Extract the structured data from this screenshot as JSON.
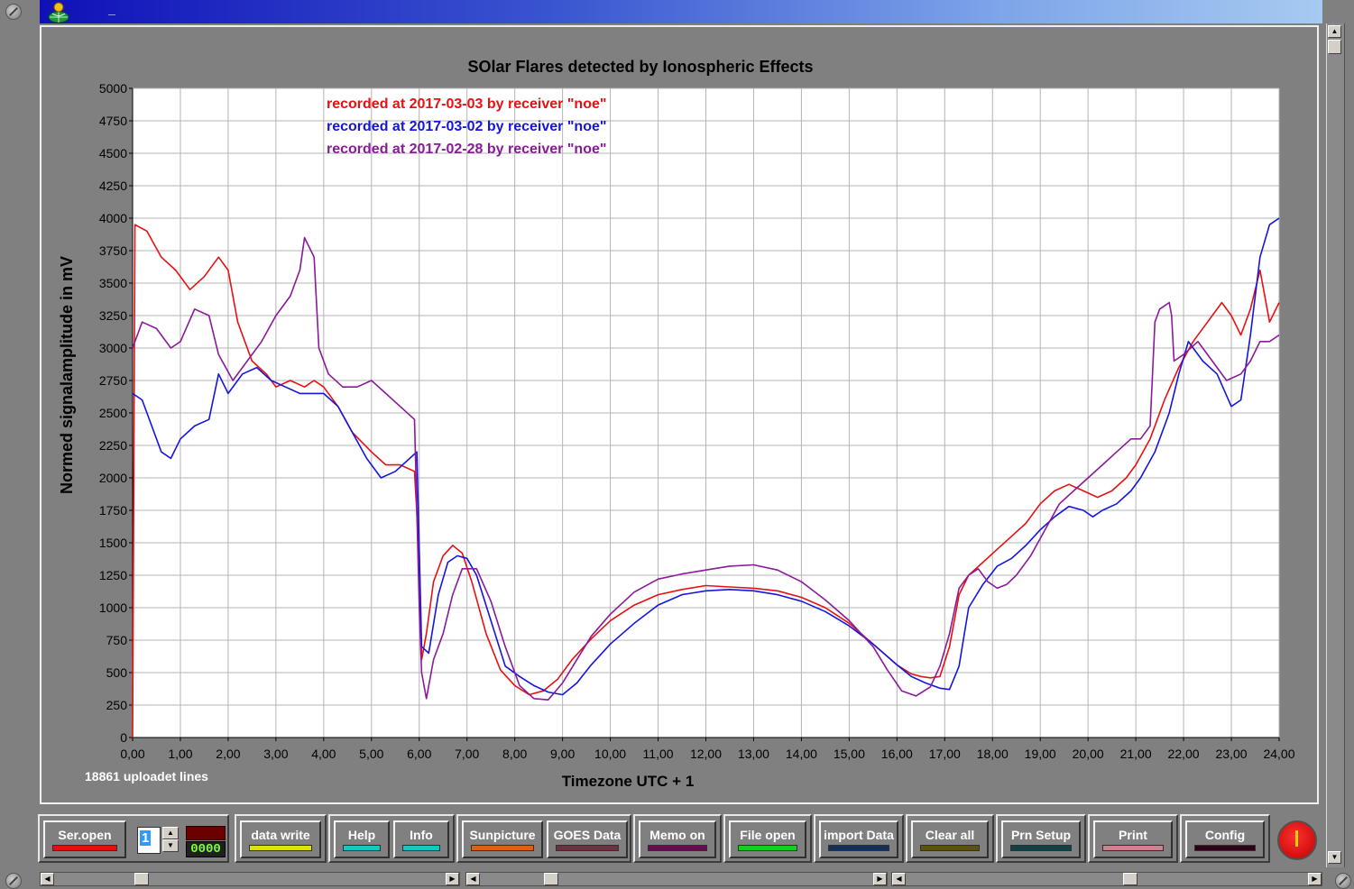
{
  "window": {
    "min_symbol": "_"
  },
  "chart_data": {
    "type": "line",
    "title": "SOlar Flares detected by Ionospheric Effects",
    "xlabel": "Timezone UTC + 1",
    "ylabel": "Normed signalamplitude in mV",
    "xlim": [
      0,
      24
    ],
    "ylim": [
      0,
      5000
    ],
    "grid": true,
    "legend_position": "top-left",
    "x_ticks": [
      "0,00",
      "1,00",
      "2,00",
      "3,00",
      "4,00",
      "5,00",
      "6,00",
      "7,00",
      "8,00",
      "9,00",
      "10,00",
      "11,00",
      "12,00",
      "13,00",
      "14,00",
      "15,00",
      "16,00",
      "17,00",
      "18,00",
      "19,00",
      "20,00",
      "21,00",
      "22,00",
      "23,00",
      "24,00"
    ],
    "y_ticks": [
      "0",
      "250",
      "500",
      "750",
      "1000",
      "1250",
      "1500",
      "1750",
      "2000",
      "2250",
      "2500",
      "2750",
      "3000",
      "3250",
      "3500",
      "3750",
      "4000",
      "4250",
      "4500",
      "4750",
      "5000"
    ],
    "series": [
      {
        "name": "recorded at 2017-03-03 by receiver \"noe\"",
        "color": "#e81010",
        "x": [
          0,
          0.05,
          0.3,
          0.6,
          0.9,
          1.2,
          1.5,
          1.8,
          2.0,
          2.2,
          2.5,
          2.8,
          3.0,
          3.3,
          3.6,
          3.8,
          4.0,
          4.3,
          4.6,
          5.0,
          5.3,
          5.6,
          5.9,
          6.0,
          6.05,
          6.15,
          6.3,
          6.5,
          6.7,
          6.9,
          7.1,
          7.4,
          7.7,
          8.0,
          8.3,
          8.6,
          8.9,
          9.2,
          9.6,
          10.0,
          10.5,
          11.0,
          11.5,
          12.0,
          12.5,
          13.0,
          13.5,
          14.0,
          14.5,
          15.0,
          15.5,
          16.0,
          16.3,
          16.5,
          16.7,
          16.9,
          17.1,
          17.3,
          17.5,
          17.8,
          18.1,
          18.4,
          18.7,
          19.0,
          19.3,
          19.6,
          19.9,
          20.2,
          20.5,
          20.8,
          21.0,
          21.3,
          21.6,
          21.9,
          22.2,
          22.5,
          22.8,
          23.0,
          23.2,
          23.4,
          23.6,
          23.8,
          24.0
        ],
        "values": [
          0,
          3950,
          3900,
          3700,
          3600,
          3450,
          3550,
          3700,
          3600,
          3200,
          2900,
          2800,
          2700,
          2750,
          2700,
          2750,
          2700,
          2550,
          2350,
          2200,
          2100,
          2100,
          2050,
          1400,
          600,
          800,
          1200,
          1400,
          1480,
          1420,
          1200,
          800,
          520,
          400,
          330,
          360,
          450,
          600,
          760,
          900,
          1020,
          1100,
          1140,
          1170,
          1160,
          1150,
          1130,
          1080,
          1000,
          880,
          720,
          560,
          490,
          470,
          460,
          470,
          700,
          1100,
          1250,
          1350,
          1450,
          1550,
          1650,
          1800,
          1900,
          1950,
          1900,
          1850,
          1900,
          2000,
          2100,
          2300,
          2600,
          2850,
          3050,
          3200,
          3350,
          3250,
          3100,
          3300,
          3600,
          3200,
          3350
        ]
      },
      {
        "name": "recorded at 2017-03-02 by receiver \"noe\"",
        "color": "#1515e0",
        "x": [
          0,
          0.2,
          0.4,
          0.6,
          0.8,
          1.0,
          1.3,
          1.6,
          1.8,
          2.0,
          2.3,
          2.6,
          2.9,
          3.2,
          3.5,
          3.8,
          4.0,
          4.3,
          4.6,
          4.9,
          5.2,
          5.5,
          5.8,
          5.95,
          6.05,
          6.2,
          6.4,
          6.6,
          6.8,
          7.0,
          7.2,
          7.5,
          7.8,
          8.1,
          8.4,
          8.7,
          9.0,
          9.3,
          9.6,
          10.0,
          10.5,
          11.0,
          11.5,
          12.0,
          12.5,
          13.0,
          13.5,
          14.0,
          14.5,
          15.0,
          15.5,
          16.0,
          16.3,
          16.6,
          16.9,
          17.1,
          17.3,
          17.5,
          17.8,
          18.1,
          18.4,
          18.7,
          19.0,
          19.3,
          19.6,
          19.9,
          20.1,
          20.3,
          20.6,
          20.9,
          21.1,
          21.4,
          21.7,
          21.9,
          22.1,
          22.4,
          22.7,
          23.0,
          23.2,
          23.4,
          23.6,
          23.8,
          24.0
        ],
        "values": [
          2650,
          2600,
          2400,
          2200,
          2150,
          2300,
          2400,
          2450,
          2800,
          2650,
          2800,
          2850,
          2750,
          2700,
          2650,
          2650,
          2650,
          2550,
          2350,
          2150,
          2000,
          2050,
          2150,
          2200,
          700,
          650,
          1100,
          1350,
          1400,
          1380,
          1250,
          900,
          550,
          470,
          400,
          350,
          330,
          420,
          560,
          720,
          880,
          1020,
          1100,
          1130,
          1140,
          1130,
          1100,
          1050,
          970,
          860,
          720,
          560,
          470,
          420,
          380,
          370,
          550,
          1000,
          1180,
          1320,
          1380,
          1480,
          1600,
          1700,
          1780,
          1750,
          1700,
          1750,
          1800,
          1900,
          2000,
          2200,
          2500,
          2800,
          3050,
          2900,
          2800,
          2550,
          2600,
          3100,
          3700,
          3950,
          4000
        ]
      },
      {
        "name": "recorded at 2017-02-28 by receiver \"noe\"",
        "color": "#8a1a9a",
        "x": [
          0,
          0.2,
          0.5,
          0.8,
          1.0,
          1.3,
          1.6,
          1.8,
          2.1,
          2.4,
          2.7,
          3.0,
          3.3,
          3.5,
          3.6,
          3.8,
          3.9,
          4.1,
          4.4,
          4.7,
          5.0,
          5.3,
          5.6,
          5.9,
          6.0,
          6.05,
          6.15,
          6.3,
          6.5,
          6.7,
          6.9,
          7.2,
          7.5,
          7.8,
          8.1,
          8.4,
          8.7,
          9.0,
          9.3,
          9.6,
          10.0,
          10.5,
          11.0,
          11.5,
          12.0,
          12.5,
          13.0,
          13.5,
          14.0,
          14.5,
          15.0,
          15.5,
          15.8,
          16.1,
          16.4,
          16.7,
          16.9,
          17.1,
          17.3,
          17.5,
          17.7,
          17.9,
          18.1,
          18.3,
          18.5,
          18.8,
          19.1,
          19.4,
          19.7,
          20.0,
          20.3,
          20.6,
          20.9,
          21.1,
          21.3,
          21.4,
          21.5,
          21.7,
          21.75,
          21.8,
          22.0,
          22.3,
          22.6,
          22.9,
          23.2,
          23.4,
          23.6,
          23.8,
          24.0
        ],
        "values": [
          3000,
          3200,
          3150,
          3000,
          3050,
          3300,
          3250,
          2950,
          2750,
          2900,
          3050,
          3250,
          3400,
          3600,
          3850,
          3700,
          3000,
          2800,
          2700,
          2700,
          2750,
          2650,
          2550,
          2450,
          1000,
          500,
          300,
          600,
          800,
          1100,
          1300,
          1300,
          1050,
          700,
          400,
          300,
          290,
          420,
          600,
          780,
          950,
          1120,
          1220,
          1260,
          1290,
          1320,
          1330,
          1290,
          1200,
          1060,
          900,
          700,
          520,
          360,
          320,
          390,
          550,
          800,
          1150,
          1250,
          1300,
          1200,
          1150,
          1180,
          1250,
          1400,
          1600,
          1800,
          1900,
          2000,
          2100,
          2200,
          2300,
          2300,
          2400,
          3200,
          3300,
          3350,
          3250,
          2900,
          2950,
          3050,
          2900,
          2750,
          2800,
          2900,
          3050,
          3050,
          3100
        ]
      }
    ]
  },
  "status": {
    "uploaded": "18861 uploadet lines"
  },
  "toolbar": {
    "ser_open": "Ser.open",
    "spin_value": "1",
    "counter": "0000",
    "data_write": "data write",
    "help": "Help",
    "info": "Info",
    "sunpicture": "Sunpicture",
    "goes_data": "GOES Data",
    "memo_on": "Memo on",
    "file_open": "File open",
    "import_data": "import Data",
    "clear_all": "Clear all",
    "prn_setup": "Prn Setup",
    "print": "Print",
    "config": "Config"
  },
  "led_colors": {
    "ser_open": "#e01010",
    "data_write": "#e0e010",
    "help": "#10c8c8",
    "info": "#10c8c8",
    "sunpicture": "#e06010",
    "goes_data": "#703040",
    "memo_on": "#601050",
    "file_open": "#10d020",
    "import_data": "#103060",
    "clear_all": "#605010",
    "prn_setup": "#104048",
    "print": "#d08090",
    "config": "#300018"
  }
}
